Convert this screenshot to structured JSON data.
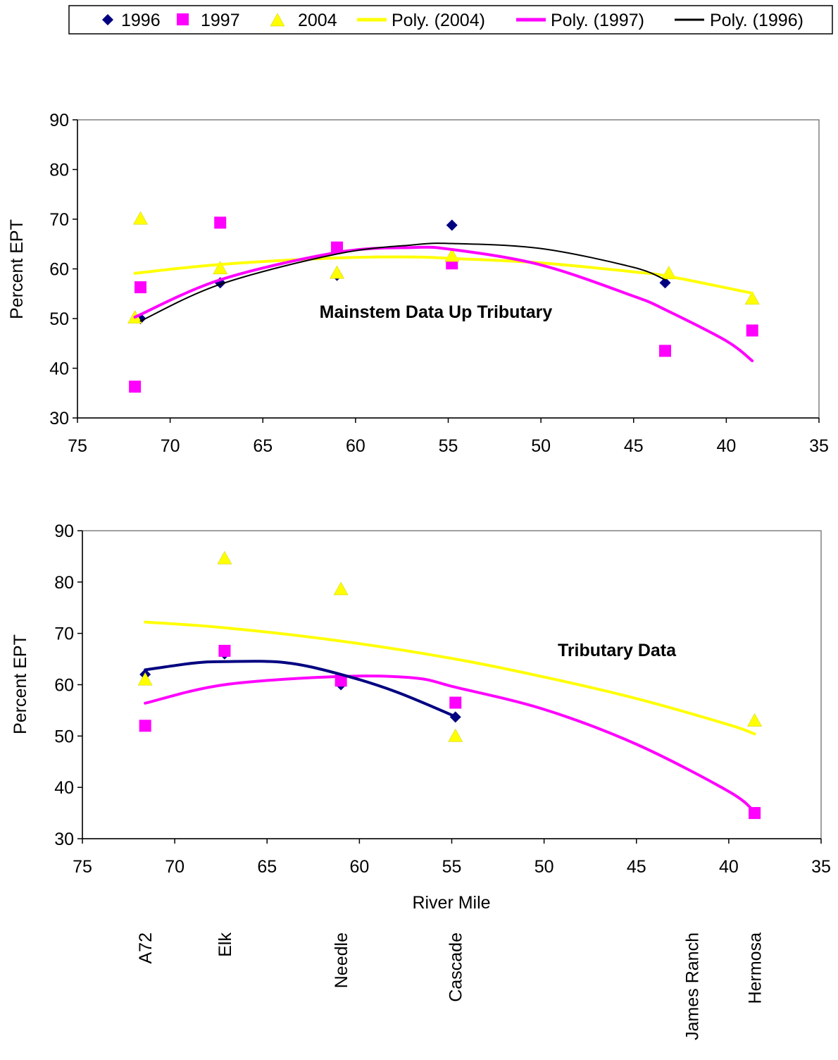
{
  "legend": {
    "placement": "top",
    "entries": [
      {
        "label": "1996",
        "marker": "diamond",
        "color": "#000080"
      },
      {
        "label": "1997",
        "marker": "square",
        "color": "#FF00FF"
      },
      {
        "label": "2004",
        "marker": "triangle",
        "color": "#FFFF00"
      },
      {
        "label": "Poly. (2004)",
        "marker": "line",
        "color": "#FFFF00"
      },
      {
        "label": "Poly. (1997)",
        "marker": "line",
        "color": "#FF00FF"
      },
      {
        "label": "Poly. (1996)",
        "marker": "line",
        "color": "#000000"
      }
    ]
  },
  "site_labels": {
    "names": [
      "A72",
      "Elk",
      "Needle",
      "Cascade",
      "James Ranch",
      "Hermosa"
    ],
    "river_miles": [
      71.6,
      67.3,
      61.0,
      54.8,
      42.0,
      38.6
    ]
  },
  "chart_data": [
    {
      "type": "scatter",
      "annotation": "Mainstem Data Up Tributary",
      "xlabel": "",
      "ylabel": "Percent EPT",
      "xlim": [
        75,
        35
      ],
      "x_reversed": true,
      "ylim": [
        30,
        90
      ],
      "x_ticks": [
        75,
        70,
        65,
        60,
        55,
        50,
        45,
        40,
        35
      ],
      "y_ticks": [
        30,
        40,
        50,
        60,
        70,
        80,
        90
      ],
      "grid": false,
      "series": [
        {
          "name": "1996",
          "marker": "diamond",
          "color": "#000080",
          "points": [
            [
              71.6,
              50
            ],
            [
              67.3,
              57.2
            ],
            [
              61.0,
              58.7
            ],
            [
              54.8,
              68.8
            ],
            [
              43.3,
              57.2
            ]
          ]
        },
        {
          "name": "1997",
          "marker": "square",
          "color": "#FF00FF",
          "points": [
            [
              71.9,
              36.3
            ],
            [
              71.6,
              56.3
            ],
            [
              67.3,
              69.3
            ],
            [
              61.0,
              64.3
            ],
            [
              54.8,
              61.1
            ],
            [
              43.3,
              43.5
            ],
            [
              38.6,
              47.6
            ]
          ]
        },
        {
          "name": "2004",
          "marker": "triangle",
          "color": "#FFFF00",
          "points": [
            [
              71.9,
              50.2
            ],
            [
              71.6,
              70.1
            ],
            [
              67.3,
              60.1
            ],
            [
              61.0,
              59.2
            ],
            [
              54.8,
              62.6
            ],
            [
              43.1,
              59.1
            ],
            [
              38.6,
              54
            ]
          ]
        }
      ],
      "trendlines": [
        {
          "name": "Poly. (2004)",
          "color": "#FFFF00",
          "width": 4,
          "points": [
            [
              71.9,
              59.1
            ],
            [
              67.3,
              60.9
            ],
            [
              61.0,
              62.2
            ],
            [
              57.0,
              62.4
            ],
            [
              54.8,
              62.1
            ],
            [
              50.0,
              61.2
            ],
            [
              45.0,
              59.4
            ],
            [
              43.1,
              58.5
            ],
            [
              38.6,
              55.1
            ]
          ]
        },
        {
          "name": "Poly. (1997)",
          "color": "#FF00FF",
          "width": 4,
          "points": [
            [
              71.9,
              50.3
            ],
            [
              67.3,
              57.8
            ],
            [
              61.0,
              63.3
            ],
            [
              57.0,
              64.3
            ],
            [
              54.8,
              63.9
            ],
            [
              50.0,
              60.8
            ],
            [
              45.0,
              54.5
            ],
            [
              43.3,
              51.8
            ],
            [
              40.0,
              45.5
            ],
            [
              38.6,
              41.5
            ]
          ]
        },
        {
          "name": "Poly. (1996)",
          "color": "#000000",
          "width": 2,
          "points": [
            [
              71.6,
              49.5
            ],
            [
              67.3,
              56.9
            ],
            [
              61.0,
              63.0
            ],
            [
              57.0,
              64.8
            ],
            [
              54.8,
              65.1
            ],
            [
              50.0,
              64.1
            ],
            [
              45.0,
              60.3
            ],
            [
              43.3,
              57.8
            ]
          ]
        }
      ]
    },
    {
      "type": "scatter",
      "annotation": "Tributary Data",
      "xlabel": "River Mile",
      "ylabel": "Percent EPT",
      "xlim": [
        75,
        35
      ],
      "x_reversed": true,
      "ylim": [
        30,
        90
      ],
      "x_ticks": [
        75,
        70,
        65,
        60,
        55,
        50,
        45,
        40,
        35
      ],
      "y_ticks": [
        30,
        40,
        50,
        60,
        70,
        80,
        90
      ],
      "grid": false,
      "series": [
        {
          "name": "1996",
          "marker": "diamond",
          "color": "#000080",
          "points": [
            [
              71.6,
              62
            ],
            [
              67.3,
              66
            ],
            [
              61.0,
              60
            ],
            [
              54.8,
              53.7
            ]
          ]
        },
        {
          "name": "1997",
          "marker": "square",
          "color": "#FF00FF",
          "points": [
            [
              71.6,
              52
            ],
            [
              67.3,
              66.6
            ],
            [
              61.0,
              60.8
            ],
            [
              54.8,
              56.5
            ],
            [
              38.6,
              35
            ]
          ]
        },
        {
          "name": "2004",
          "marker": "triangle",
          "color": "#FFFF00",
          "points": [
            [
              71.6,
              61
            ],
            [
              67.3,
              84.6
            ],
            [
              61.0,
              78.6
            ],
            [
              54.8,
              50
            ],
            [
              38.6,
              53
            ]
          ]
        }
      ],
      "trendlines": [
        {
          "name": "Poly. (2004)",
          "color": "#FFFF00",
          "width": 4,
          "points": [
            [
              71.6,
              72.2
            ],
            [
              67.3,
              71.1
            ],
            [
              61.0,
              68.5
            ],
            [
              54.8,
              65.0
            ],
            [
              50.0,
              61.5
            ],
            [
              45.0,
              57.3
            ],
            [
              40.0,
              52.2
            ],
            [
              38.6,
              50.4
            ]
          ]
        },
        {
          "name": "Poly. (1997)",
          "color": "#FF00FF",
          "width": 4,
          "points": [
            [
              71.6,
              56.4
            ],
            [
              67.3,
              60.0
            ],
            [
              61.0,
              61.6
            ],
            [
              57.0,
              61.3
            ],
            [
              54.8,
              59.5
            ],
            [
              50.0,
              55.2
            ],
            [
              45.0,
              48.4
            ],
            [
              40.0,
              39.2
            ],
            [
              38.6,
              35.2
            ]
          ]
        },
        {
          "name": "Poly. (1996)",
          "color": "#000080",
          "width": 4,
          "points": [
            [
              71.6,
              62.9
            ],
            [
              69.0,
              64.2
            ],
            [
              67.3,
              64.5
            ],
            [
              64.0,
              64.3
            ],
            [
              61.0,
              62.0
            ],
            [
              58.0,
              58.6
            ],
            [
              54.8,
              53.8
            ]
          ]
        }
      ]
    }
  ]
}
